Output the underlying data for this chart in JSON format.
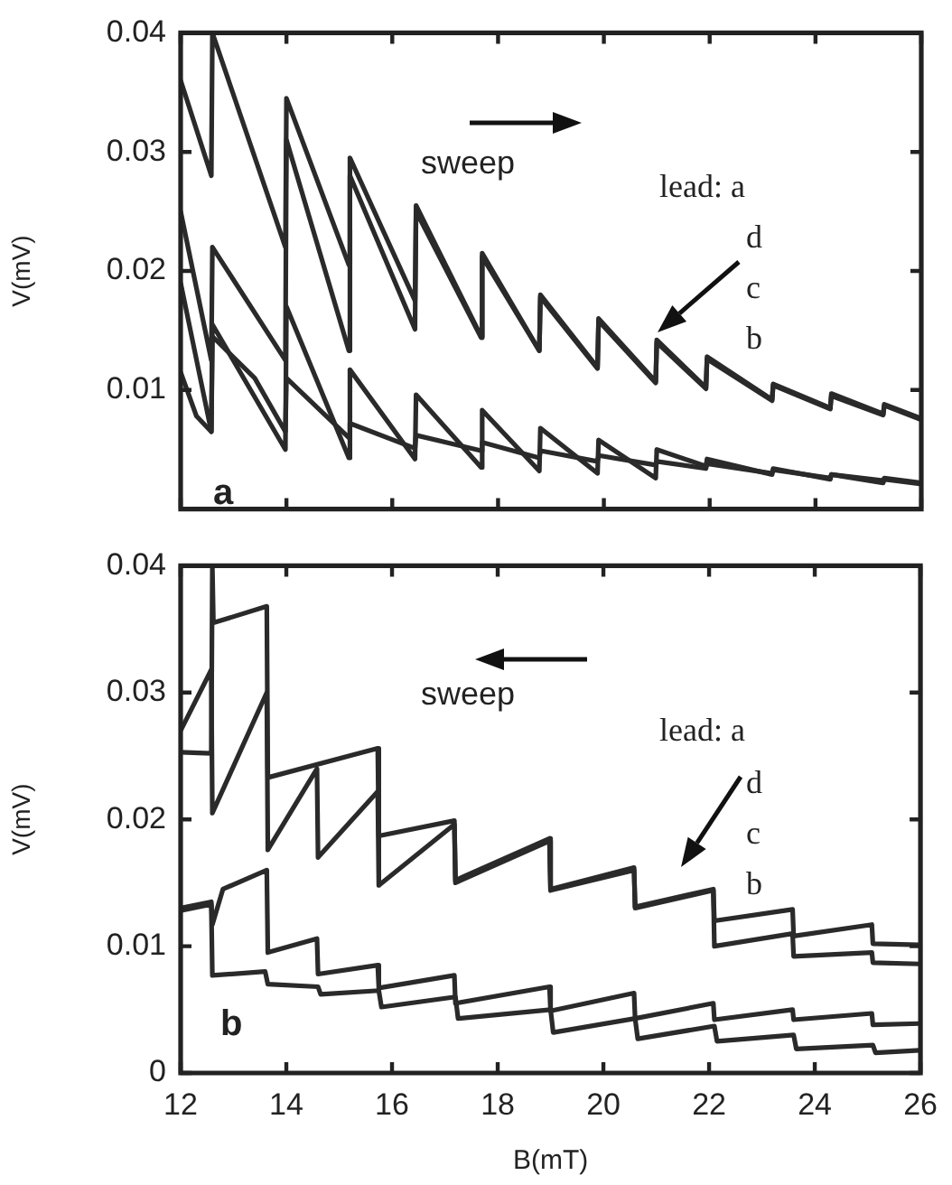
{
  "chart_data": [
    {
      "type": "line",
      "ylabel": "V(mV)",
      "xlim": [
        12,
        26
      ],
      "xticks": [
        12,
        14,
        16,
        18,
        20,
        22,
        24,
        26
      ],
      "ylim": [
        0,
        0.04
      ],
      "yticks": [
        0.01,
        0.02,
        0.03,
        0.04
      ],
      "tick_labels": "y",
      "marker": "none",
      "annotations": [
        "sweep",
        "lead: a",
        "d",
        "c",
        "b",
        "a"
      ],
      "series": [
        {
          "color": "#2a2a2a",
          "x": [
            12,
            12.58,
            12.6,
            13.98,
            14.0,
            15.18,
            15.2,
            16.43,
            16.45,
            17.68,
            17.7,
            18.78,
            18.8,
            19.88,
            19.9,
            20.98,
            21.0,
            21.93,
            21.95,
            23.18,
            23.2,
            24.28,
            24.3,
            25.28,
            25.3,
            26
          ],
          "values": [
            0.036,
            0.028,
            0.04,
            0.022,
            0.0345,
            0.0205,
            0.0295,
            0.0175,
            0.0255,
            0.0145,
            0.0215,
            0.0133,
            0.018,
            0.0119,
            0.016,
            0.0107,
            0.0142,
            0.0102,
            0.0128,
            0.0092,
            0.0105,
            0.0085,
            0.0097,
            0.008,
            0.0088,
            0.0076
          ]
        },
        {
          "color": "#2a2a2a",
          "x": [
            12,
            12.58,
            12.6,
            13.98,
            14.0,
            15.18,
            15.2,
            16.43,
            16.45,
            17.68,
            17.7,
            18.78,
            18.8,
            19.88,
            19.9,
            20.98,
            21.0,
            21.93,
            21.95,
            23.18,
            23.2,
            24.28,
            24.3,
            25.28,
            25.3,
            26
          ],
          "values": [
            0.025,
            0.0125,
            0.022,
            0.0125,
            0.031,
            0.0133,
            0.028,
            0.0151,
            0.025,
            0.0144,
            0.0212,
            0.0133,
            0.0178,
            0.0118,
            0.0158,
            0.0106,
            0.014,
            0.0101,
            0.0126,
            0.0091,
            0.0104,
            0.0084,
            0.0095,
            0.0079,
            0.0087,
            0.0075
          ]
        },
        {
          "color": "#2a2a2a",
          "x": [
            12,
            12.58,
            12.6,
            13.98,
            14.0,
            15.18,
            15.2,
            16.43,
            16.45,
            17.68,
            17.7,
            18.78,
            18.8,
            19.88,
            19.9,
            20.98,
            21.0,
            21.93,
            21.95,
            23.18,
            23.2,
            24.28,
            24.3,
            25.28,
            25.3,
            26
          ],
          "values": [
            0.019,
            0.0065,
            0.0155,
            0.005,
            0.017,
            0.0043,
            0.0117,
            0.0042,
            0.0096,
            0.0035,
            0.0083,
            0.0032,
            0.0068,
            0.003,
            0.0058,
            0.0026,
            0.005,
            0.0036,
            0.0042,
            0.0029,
            0.0034,
            0.0025,
            0.0029,
            0.0022,
            0.0025,
            0.0021
          ]
        },
        {
          "color": "#2a2a2a",
          "x": [
            12,
            12.3,
            12.58,
            12.6,
            13.4,
            13.98,
            14.0,
            15.18,
            15.2,
            16.43,
            16.45,
            17.68,
            17.7,
            18.78,
            18.8,
            19.88,
            19.9,
            20.98,
            21.0,
            21.93,
            21.95,
            23.18,
            23.2,
            24.28,
            24.3,
            25.28,
            25.3,
            26
          ],
          "values": [
            0.0115,
            0.0078,
            0.0065,
            0.0145,
            0.011,
            0.0065,
            0.011,
            0.006,
            0.0072,
            0.0051,
            0.0062,
            0.0049,
            0.0056,
            0.0043,
            0.0049,
            0.004,
            0.0045,
            0.0037,
            0.004,
            0.0034,
            0.0038,
            0.003,
            0.0033,
            0.0026,
            0.0029,
            0.0024,
            0.0026,
            0.0022
          ]
        }
      ]
    },
    {
      "type": "line",
      "xlabel": "B(mT)",
      "ylabel": "V(mV)",
      "xlim": [
        12,
        26
      ],
      "xticks": [
        12,
        14,
        16,
        18,
        20,
        22,
        24,
        26
      ],
      "ylim": [
        0,
        0.04
      ],
      "yticks": [
        0,
        0.01,
        0.02,
        0.03,
        0.04
      ],
      "marker": "none",
      "annotations": [
        "sweep",
        "lead: a",
        "d",
        "c",
        "b",
        "b"
      ],
      "series": [
        {
          "color": "#2a2a2a",
          "x": [
            12,
            12.58,
            12.6,
            12.62,
            13.63,
            13.65,
            15.73,
            15.75,
            17.18,
            17.2,
            18.98,
            19.0,
            20.58,
            20.6,
            22.08,
            22.1,
            23.58,
            23.6,
            25.08,
            25.1,
            26
          ],
          "values": [
            0.0253,
            0.0252,
            0.04,
            0.0355,
            0.0368,
            0.0233,
            0.0256,
            0.0187,
            0.0199,
            0.0152,
            0.0185,
            0.0145,
            0.0162,
            0.0131,
            0.0145,
            0.012,
            0.0129,
            0.0108,
            0.0117,
            0.0102,
            0.0101
          ]
        },
        {
          "color": "#2a2a2a",
          "x": [
            12,
            12.58,
            12.6,
            13.63,
            13.65,
            14.58,
            14.6,
            15.73,
            15.75,
            17.18,
            17.2,
            18.98,
            19.0,
            20.58,
            20.6,
            22.08,
            22.1,
            23.58,
            23.6,
            25.08,
            25.1,
            26
          ],
          "values": [
            0.027,
            0.0318,
            0.0205,
            0.03,
            0.0176,
            0.024,
            0.017,
            0.0222,
            0.0148,
            0.0196,
            0.015,
            0.0183,
            0.0144,
            0.016,
            0.013,
            0.0144,
            0.01,
            0.011,
            0.0092,
            0.0095,
            0.0087,
            0.0086
          ]
        },
        {
          "color": "#2a2a2a",
          "x": [
            12,
            12.58,
            12.6,
            12.8,
            13.63,
            13.65,
            14.58,
            14.6,
            15.73,
            15.75,
            17.18,
            17.2,
            18.98,
            19.0,
            20.58,
            20.6,
            22.08,
            22.1,
            23.58,
            23.6,
            25.08,
            25.1,
            26
          ],
          "values": [
            0.013,
            0.0135,
            0.0117,
            0.0145,
            0.016,
            0.0095,
            0.0106,
            0.0078,
            0.0085,
            0.0067,
            0.0077,
            0.0055,
            0.0068,
            0.0049,
            0.0063,
            0.0043,
            0.0055,
            0.0042,
            0.005,
            0.0042,
            0.0047,
            0.0038,
            0.0039
          ]
        },
        {
          "color": "#2a2a2a",
          "x": [
            12,
            12.58,
            12.6,
            13.6,
            13.65,
            14.6,
            14.65,
            15.75,
            15.8,
            17.2,
            17.25,
            19.0,
            19.05,
            20.6,
            20.65,
            22.1,
            22.15,
            23.6,
            23.65,
            25.1,
            25.15,
            26
          ],
          "values": [
            0.0128,
            0.0133,
            0.0077,
            0.008,
            0.007,
            0.0068,
            0.0062,
            0.0065,
            0.0052,
            0.006,
            0.0043,
            0.005,
            0.0032,
            0.0043,
            0.0027,
            0.0037,
            0.0025,
            0.003,
            0.0019,
            0.0022,
            0.0016,
            0.0018
          ]
        }
      ]
    }
  ]
}
